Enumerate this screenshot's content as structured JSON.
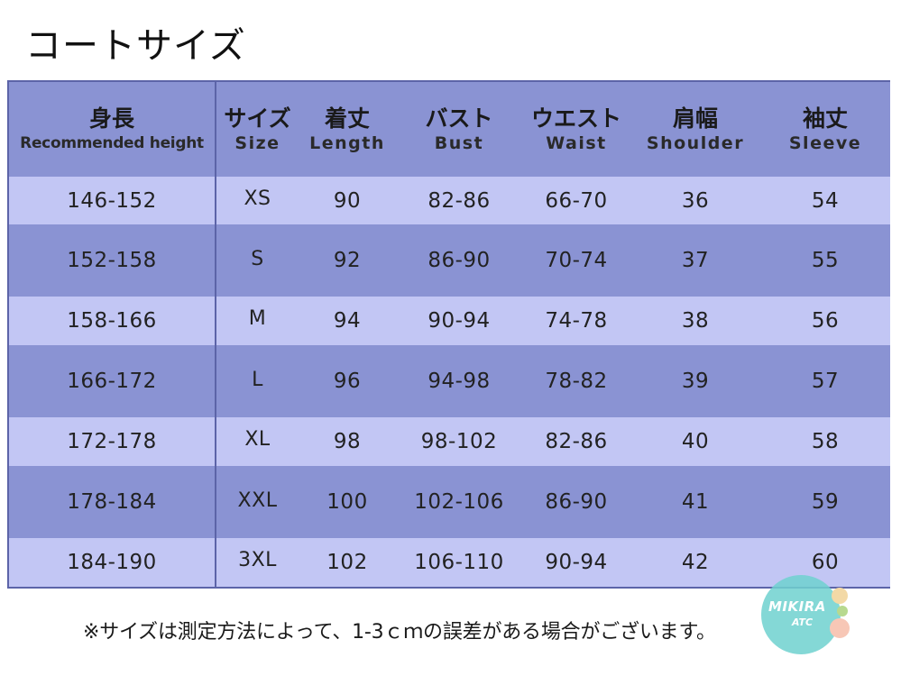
{
  "title": "コートサイズ",
  "headers": [
    {
      "jp": "身長",
      "en": "Recommended height"
    },
    {
      "jp": "サイズ",
      "en": "Size"
    },
    {
      "jp": "着丈",
      "en": "Length"
    },
    {
      "jp": "バスト",
      "en": "Bust"
    },
    {
      "jp": "ウエスト",
      "en": "Waist"
    },
    {
      "jp": "肩幅",
      "en": "Shoulder"
    },
    {
      "jp": "袖丈",
      "en": "Sleeve"
    }
  ],
  "rows": [
    [
      "146-152",
      "XS",
      "90",
      "82-86",
      "66-70",
      "36",
      "54"
    ],
    [
      "152-158",
      "S",
      "92",
      "86-90",
      "70-74",
      "37",
      "55"
    ],
    [
      "158-166",
      "M",
      "94",
      "90-94",
      "74-78",
      "38",
      "56"
    ],
    [
      "166-172",
      "L",
      "96",
      "94-98",
      "78-82",
      "39",
      "57"
    ],
    [
      "172-178",
      "XL",
      "98",
      "98-102",
      "82-86",
      "40",
      "58"
    ],
    [
      "178-184",
      "XXL",
      "100",
      "102-106",
      "86-90",
      "41",
      "59"
    ],
    [
      "184-190",
      "3XL",
      "102",
      "106-110",
      "90-94",
      "42",
      "60"
    ]
  ],
  "note": "※サイズは測定方法によって、1-3ｃｍの誤差がある場合がございます。",
  "watermark": {
    "line1": "MIKIRA",
    "line2": "ATC"
  },
  "colors": {
    "header_bg": "#8a93d3",
    "row_light": "#c2c6f4",
    "row_dark": "#8a93d3",
    "watermark": "#6fd1cf"
  }
}
